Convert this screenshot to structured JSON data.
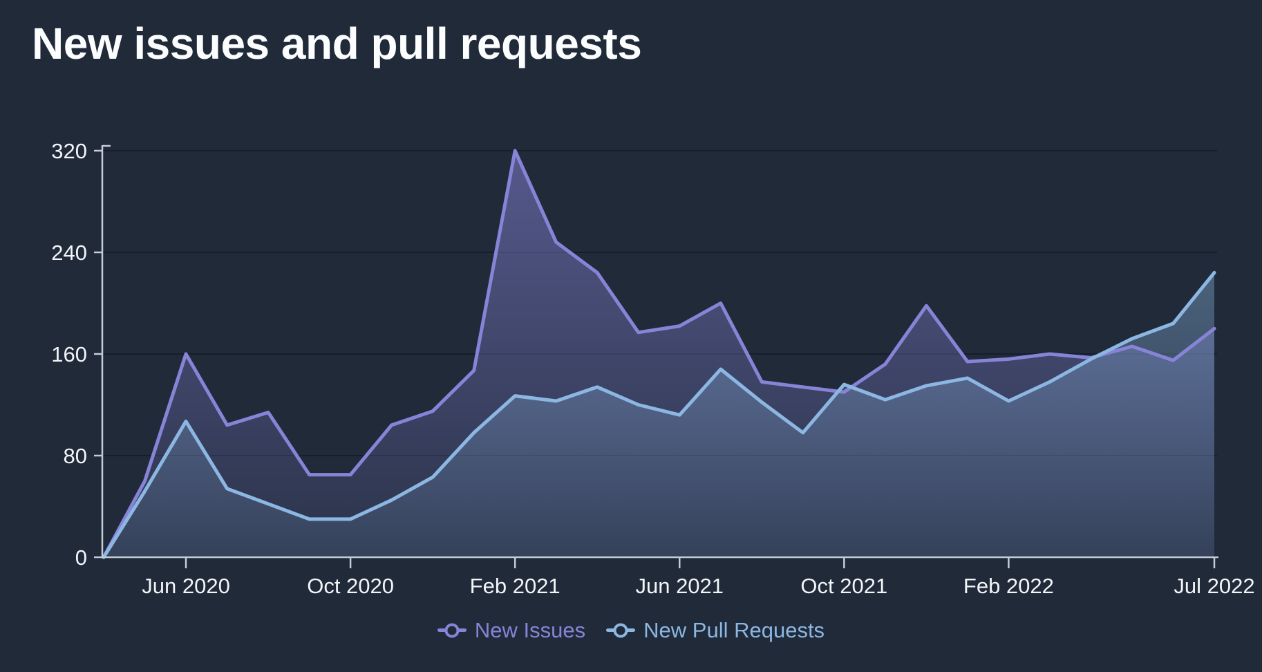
{
  "title": "New issues and pull requests",
  "colors": {
    "background": "#202a39",
    "axis_line": "#c6ccd7",
    "tick_label": "#f3f5f8",
    "gridline": "rgba(10,16,26,0.45)",
    "issues": "#8784d8",
    "pull_requests": "#8cb7e2"
  },
  "legend": {
    "items": [
      {
        "label": "New Issues",
        "color": "#8784d8"
      },
      {
        "label": "New Pull Requests",
        "color": "#8cb7e2"
      }
    ]
  },
  "chart_data": {
    "type": "area",
    "title": "New issues and pull requests",
    "xlabel": "",
    "ylabel": "",
    "ylim": [
      0,
      320
    ],
    "yticks": [
      0,
      80,
      160,
      240,
      320
    ],
    "grid": "horizontal",
    "legend_position": "bottom",
    "x": [
      "Apr 2020",
      "May 2020",
      "Jun 2020",
      "Jul 2020",
      "Aug 2020",
      "Sep 2020",
      "Oct 2020",
      "Nov 2020",
      "Dec 2020",
      "Jan 2021",
      "Feb 2021",
      "Mar 2021",
      "Apr 2021",
      "May 2021",
      "Jun 2021",
      "Jul 2021",
      "Aug 2021",
      "Sep 2021",
      "Oct 2021",
      "Nov 2021",
      "Dec 2021",
      "Jan 2022",
      "Feb 2022",
      "Mar 2022",
      "Apr 2022",
      "May 2022",
      "Jun 2022",
      "Jul 2022"
    ],
    "x_tick_labels": [
      {
        "index": 2,
        "label": "Jun 2020"
      },
      {
        "index": 6,
        "label": "Oct 2020"
      },
      {
        "index": 10,
        "label": "Feb 2021"
      },
      {
        "index": 14,
        "label": "Jun 2021"
      },
      {
        "index": 18,
        "label": "Oct 2021"
      },
      {
        "index": 22,
        "label": "Feb 2022"
      },
      {
        "index": 27,
        "label": "Jul 2022"
      }
    ],
    "series": [
      {
        "name": "New Issues",
        "color": "#8784d8",
        "values": [
          0,
          60,
          160,
          104,
          114,
          65,
          65,
          104,
          115,
          147,
          320,
          248,
          224,
          177,
          182,
          200,
          138,
          134,
          130,
          152,
          198,
          154,
          156,
          160,
          157,
          166,
          155,
          180
        ]
      },
      {
        "name": "New Pull Requests",
        "color": "#8cb7e2",
        "values": [
          0,
          52,
          107,
          54,
          42,
          30,
          30,
          45,
          63,
          98,
          127,
          123,
          134,
          120,
          112,
          148,
          122,
          98,
          136,
          124,
          135,
          141,
          123,
          138,
          156,
          172,
          184,
          224
        ]
      }
    ]
  }
}
